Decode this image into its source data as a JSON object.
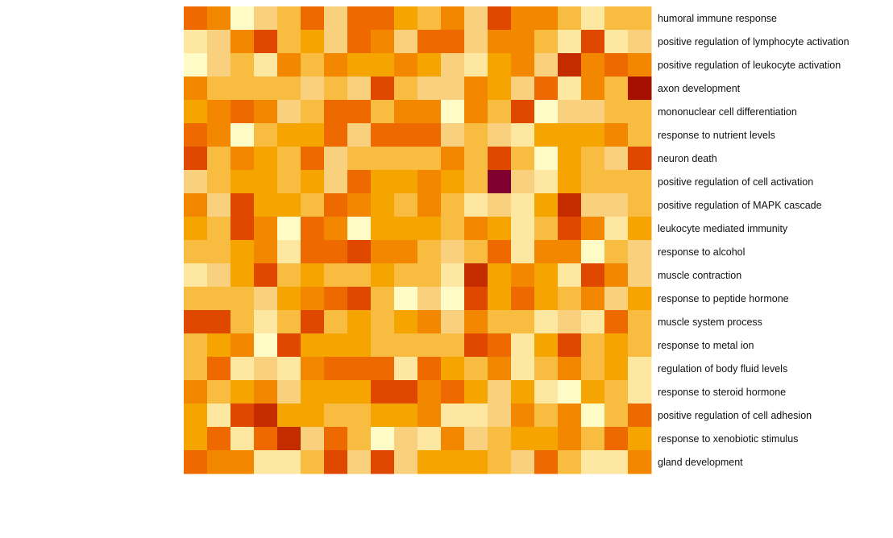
{
  "chart_data": {
    "type": "heatmap",
    "title": "",
    "xlabel": "",
    "ylabel": "",
    "legend": "none",
    "grid": false,
    "color_scale": [
      "#FFFBC7",
      "#FEE7A0",
      "#F9D07E",
      "#F8BD40",
      "#F6A500",
      "#F38700",
      "#EE6A00",
      "#E04800",
      "#C42C00",
      "#A61000",
      "#800030"
    ],
    "rows": [
      "humoral immune response",
      "positive regulation of lymphocyte activation",
      "positive regulation of leukocyte activation",
      "axon development",
      "mononuclear cell differentiation",
      "response to nutrient levels",
      "neuron death",
      "positive regulation of cell activation",
      "positive regulation of MAPK cascade",
      "leukocyte mediated immunity",
      "response to alcohol",
      "muscle contraction",
      "response to peptide hormone",
      "muscle system process",
      "response to metal ion",
      "regulation of body fluid levels",
      "response to steroid hormone",
      "positive regulation of cell adhesion",
      "response to xenobiotic stimulus",
      "gland development"
    ],
    "columns": 20,
    "values": [
      [
        6,
        5,
        0,
        2,
        3,
        6,
        2,
        6,
        6,
        4,
        3,
        5,
        2,
        7,
        5,
        5,
        3,
        1,
        3,
        3
      ],
      [
        1,
        2,
        5,
        7,
        3,
        4,
        2,
        6,
        5,
        2,
        6,
        6,
        2,
        5,
        5,
        3,
        1,
        7,
        1,
        2
      ],
      [
        0,
        2,
        3,
        1,
        5,
        3,
        5,
        4,
        4,
        5,
        4,
        2,
        1,
        4,
        5,
        2,
        8,
        5,
        6,
        5
      ],
      [
        5,
        3,
        3,
        3,
        3,
        2,
        3,
        2,
        7,
        3,
        2,
        2,
        5,
        4,
        2,
        6,
        1,
        5,
        3,
        9
      ],
      [
        4,
        5,
        6,
        5,
        2,
        3,
        6,
        6,
        3,
        5,
        5,
        0,
        5,
        3,
        7,
        0,
        2,
        2,
        3,
        3
      ],
      [
        6,
        5,
        0,
        3,
        4,
        4,
        6,
        2,
        6,
        6,
        6,
        2,
        3,
        2,
        1,
        4,
        4,
        4,
        5,
        3
      ],
      [
        7,
        3,
        5,
        4,
        3,
        6,
        2,
        3,
        3,
        3,
        3,
        5,
        3,
        7,
        3,
        0,
        4,
        3,
        2,
        7
      ],
      [
        2,
        3,
        4,
        4,
        3,
        4,
        2,
        6,
        4,
        4,
        5,
        4,
        3,
        10,
        2,
        1,
        4,
        3,
        3,
        3
      ],
      [
        5,
        2,
        7,
        4,
        4,
        3,
        6,
        5,
        4,
        3,
        5,
        3,
        1,
        2,
        1,
        4,
        8,
        2,
        2,
        3
      ],
      [
        4,
        3,
        7,
        5,
        0,
        6,
        5,
        0,
        4,
        4,
        4,
        3,
        5,
        4,
        1,
        3,
        7,
        5,
        1,
        4
      ],
      [
        3,
        3,
        4,
        5,
        1,
        6,
        6,
        7,
        5,
        5,
        3,
        2,
        3,
        6,
        1,
        5,
        5,
        0,
        3,
        2
      ],
      [
        1,
        2,
        4,
        7,
        3,
        4,
        3,
        3,
        4,
        3,
        3,
        1,
        8,
        4,
        5,
        4,
        1,
        7,
        5,
        2
      ],
      [
        3,
        3,
        3,
        2,
        4,
        5,
        6,
        7,
        3,
        0,
        2,
        0,
        7,
        4,
        6,
        4,
        3,
        5,
        2,
        4
      ],
      [
        7,
        7,
        3,
        1,
        3,
        7,
        3,
        4,
        3,
        4,
        5,
        2,
        5,
        3,
        3,
        1,
        2,
        1,
        6,
        3
      ],
      [
        3,
        4,
        5,
        0,
        7,
        4,
        4,
        4,
        3,
        3,
        3,
        3,
        7,
        6,
        1,
        4,
        7,
        3,
        4,
        3
      ],
      [
        3,
        6,
        1,
        2,
        1,
        5,
        6,
        6,
        6,
        1,
        6,
        4,
        3,
        5,
        1,
        3,
        5,
        3,
        4,
        1
      ],
      [
        5,
        3,
        4,
        5,
        2,
        4,
        4,
        4,
        7,
        7,
        5,
        6,
        4,
        2,
        4,
        1,
        0,
        4,
        3,
        1
      ],
      [
        4,
        1,
        7,
        8,
        4,
        4,
        3,
        3,
        4,
        4,
        5,
        1,
        1,
        2,
        5,
        3,
        5,
        0,
        3,
        6
      ],
      [
        4,
        6,
        1,
        6,
        8,
        2,
        6,
        3,
        0,
        2,
        1,
        5,
        2,
        3,
        4,
        4,
        5,
        3,
        6,
        4
      ],
      [
        6,
        5,
        5,
        1,
        1,
        3,
        7,
        2,
        7,
        2,
        4,
        4,
        4,
        3,
        2,
        6,
        3,
        1,
        1,
        5
      ]
    ]
  }
}
